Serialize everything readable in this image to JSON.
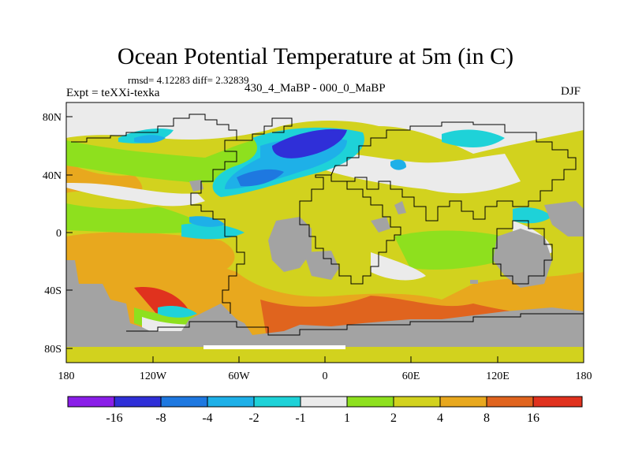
{
  "title": "Ocean Potential Temperature at 5m (in C)",
  "stats": "rmsd= 4.12283 diff= 2.32839",
  "expt": "Expt = teXXi-texka",
  "subtitle": "430_4_MaBP - 000_0_MaBP",
  "season": "DJF",
  "lat_labels": [
    "80N",
    "40N",
    "0",
    "40S",
    "80S"
  ],
  "lon_labels": [
    "180",
    "120W",
    "60W",
    "0",
    "60E",
    "120E",
    "180"
  ],
  "colorbar": {
    "labels": [
      "-16",
      "-8",
      "-4",
      "-2",
      "-1",
      "1",
      "2",
      "4",
      "8",
      "16"
    ],
    "colors": [
      "#8a1ee8",
      "#2f2fd8",
      "#1e78e0",
      "#1eb0e8",
      "#1ed2d8",
      "#ebebeb",
      "#8ee01e",
      "#d2d21e",
      "#e8a81e",
      "#e0641e",
      "#e0321e"
    ]
  },
  "colors": {
    "land": "#a3a3a3",
    "outline": "#000000"
  },
  "chart_data": {
    "type": "heatmap",
    "title": "Ocean Potential Temperature at 5m (in C)",
    "units": "C",
    "contour_levels": [
      -16,
      -8,
      -4,
      -2,
      -1,
      1,
      2,
      4,
      8,
      16
    ],
    "lon_range": [
      -180,
      180
    ],
    "lat_range": [
      -90,
      90
    ],
    "xticks": [
      "180",
      "120W",
      "60W",
      "0",
      "60E",
      "120E",
      "180"
    ],
    "yticks": [
      "80N",
      "40N",
      "0",
      "40S",
      "80S"
    ],
    "season": "DJF",
    "rmsd": 4.12283,
    "diff": 2.32839
  }
}
